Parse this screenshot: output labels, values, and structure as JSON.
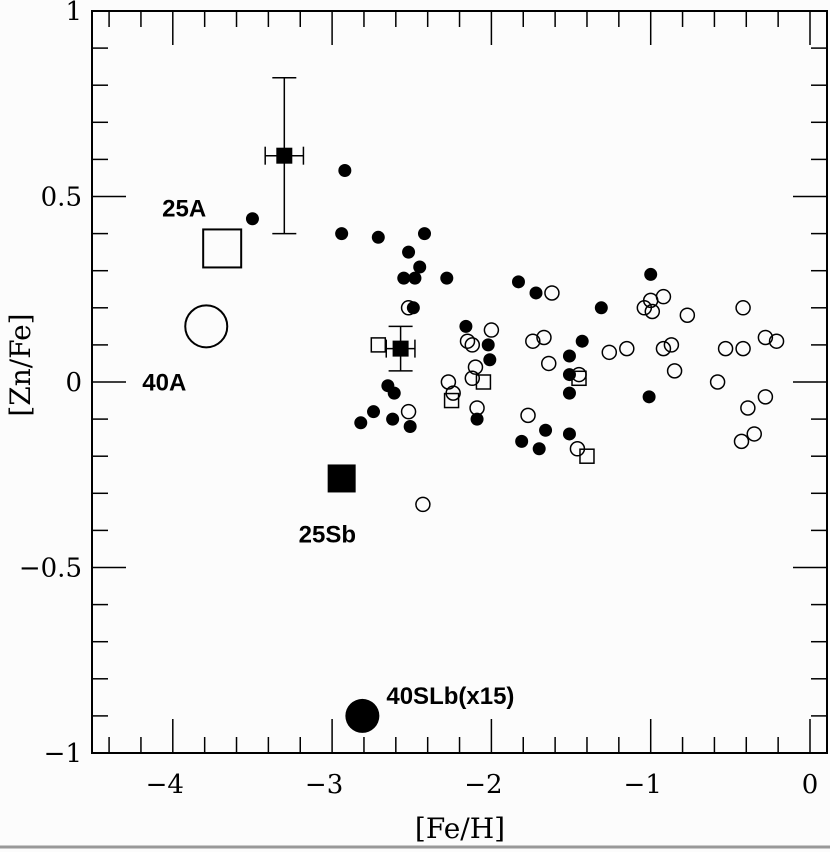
{
  "chart_data": {
    "type": "scatter",
    "title": "",
    "xlabel": "[Fe/H]",
    "ylabel": "[Zn/Fe]",
    "xlim": [
      -4.5,
      0.1
    ],
    "ylim": [
      -1,
      1
    ],
    "xticks": [
      -4,
      -3,
      -2,
      -1,
      0
    ],
    "xtick_labels": [
      "−4",
      "−3",
      "−2",
      "−1",
      "0"
    ],
    "yticks": [
      -1,
      -0.5,
      0,
      0.5,
      1
    ],
    "ytick_labels": [
      "−1",
      "−0.5",
      "0",
      "0.5",
      "1"
    ],
    "minor_tick_step_x": 0.2,
    "minor_tick_step_y": 0.1,
    "grid": false,
    "series": [
      {
        "name": "filled circles",
        "marker": "filled-circle",
        "points": [
          [
            -3.5,
            0.44
          ],
          [
            -2.92,
            0.57
          ],
          [
            -2.94,
            0.4
          ],
          [
            -2.71,
            0.39
          ],
          [
            -2.42,
            0.4
          ],
          [
            -2.52,
            0.35
          ],
          [
            -2.45,
            0.31
          ],
          [
            -2.55,
            0.28
          ],
          [
            -2.48,
            0.28
          ],
          [
            -2.28,
            0.28
          ],
          [
            -2.49,
            0.2
          ],
          [
            -2.16,
            0.15
          ],
          [
            -2.02,
            0.1
          ],
          [
            -2.01,
            0.06
          ],
          [
            -1.83,
            0.27
          ],
          [
            -1.72,
            0.24
          ],
          [
            -1.31,
            0.2
          ],
          [
            -1.0,
            0.29
          ],
          [
            -1.43,
            0.11
          ],
          [
            -1.51,
            0.07
          ],
          [
            -1.51,
            0.02
          ],
          [
            -1.51,
            -0.03
          ],
          [
            -1.01,
            -0.04
          ],
          [
            -2.09,
            -0.1
          ],
          [
            -1.81,
            -0.16
          ],
          [
            -1.66,
            -0.13
          ],
          [
            -1.7,
            -0.18
          ],
          [
            -1.51,
            -0.14
          ],
          [
            -2.65,
            -0.01
          ],
          [
            -2.61,
            -0.03
          ],
          [
            -2.74,
            -0.08
          ],
          [
            -2.62,
            -0.1
          ],
          [
            -2.82,
            -0.11
          ],
          [
            -2.51,
            -0.12
          ]
        ]
      },
      {
        "name": "open circles",
        "marker": "open-circle",
        "points": [
          [
            -1.62,
            0.24
          ],
          [
            -2.0,
            0.14
          ],
          [
            -2.15,
            0.11
          ],
          [
            -2.12,
            0.1
          ],
          [
            -1.74,
            0.11
          ],
          [
            -1.67,
            0.12
          ],
          [
            -2.1,
            0.04
          ],
          [
            -1.64,
            0.05
          ],
          [
            -2.27,
            0.0
          ],
          [
            -2.12,
            0.01
          ],
          [
            -2.24,
            -0.03
          ],
          [
            -2.09,
            -0.07
          ],
          [
            -1.77,
            -0.09
          ],
          [
            -1.46,
            -0.18
          ],
          [
            -1.26,
            0.08
          ],
          [
            -1.15,
            0.09
          ],
          [
            -1.45,
            0.02
          ],
          [
            -1.0,
            0.22
          ],
          [
            -0.92,
            0.23
          ],
          [
            -1.04,
            0.2
          ],
          [
            -0.99,
            0.19
          ],
          [
            -0.77,
            0.18
          ],
          [
            -0.92,
            0.09
          ],
          [
            -0.87,
            0.1
          ],
          [
            -0.85,
            0.03
          ],
          [
            -0.42,
            0.2
          ],
          [
            -0.53,
            0.09
          ],
          [
            -0.42,
            0.09
          ],
          [
            -0.28,
            0.12
          ],
          [
            -0.21,
            0.11
          ],
          [
            -0.58,
            0.0
          ],
          [
            -0.28,
            -0.04
          ],
          [
            -0.39,
            -0.07
          ],
          [
            -0.35,
            -0.14
          ],
          [
            -0.43,
            -0.16
          ],
          [
            -2.43,
            -0.33
          ],
          [
            -2.52,
            0.2
          ],
          [
            -2.52,
            -0.08
          ]
        ]
      },
      {
        "name": "open squares",
        "marker": "open-square",
        "points": [
          [
            -2.71,
            0.1
          ],
          [
            -2.05,
            0.0
          ],
          [
            -2.25,
            -0.05
          ],
          [
            -1.45,
            0.01
          ],
          [
            -1.4,
            -0.2
          ]
        ]
      },
      {
        "name": "filled squares with error bars",
        "marker": "filled-square-errorbar",
        "points": [
          {
            "x": -3.3,
            "y": 0.61,
            "xerr": 0.12,
            "ylow": 0.4,
            "yhigh": 0.82
          },
          {
            "x": -2.57,
            "y": 0.09,
            "xerr": 0.09,
            "ylow": 0.03,
            "yhigh": 0.15
          }
        ]
      }
    ],
    "annotations": [
      {
        "label": "25A",
        "marker": "large-open-square",
        "x": -3.69,
        "y": 0.36,
        "label_side": "top-left"
      },
      {
        "label": "40A",
        "marker": "large-open-circle",
        "x": -3.79,
        "y": 0.15,
        "label_side": "bottom-left"
      },
      {
        "label": "25Sb",
        "marker": "large-filled-square",
        "x": -2.94,
        "y": -0.26,
        "label_side": "bottom"
      },
      {
        "label": "40SLb(x15)",
        "marker": "large-filled-circle",
        "x": -2.81,
        "y": -0.9,
        "label_side": "right"
      }
    ]
  }
}
